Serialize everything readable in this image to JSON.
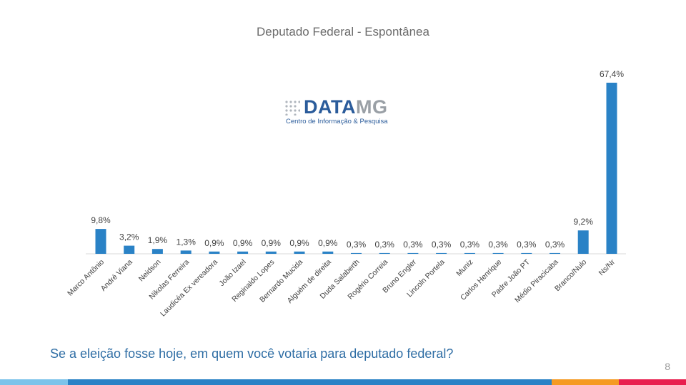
{
  "slide": {
    "question": "Se a eleição fosse hoje, em quem você votaria para deputado federal?",
    "page_number": "8"
  },
  "logo": {
    "brand_a": "DATA",
    "brand_b": "MG",
    "tagline": "Centro de Informação & Pesquisa"
  },
  "colors": {
    "bar": "#2a82c6",
    "title": "#6b6b6b",
    "question": "#2e6da4",
    "footer_segments": [
      "#7cc3ea",
      "#2a82c6",
      "#f59a23",
      "#e8204f"
    ]
  },
  "chart_data": {
    "type": "bar",
    "title": "Deputado Federal - Espontânea",
    "xlabel": "",
    "ylabel": "",
    "ylim": [
      0,
      70
    ],
    "grid": false,
    "categories": [
      "Marco Antônio",
      "André Viana",
      "Neidson",
      "Nikolas Ferreira",
      "Laudicéa Ex vereadora",
      "João Izael",
      "Reginaldo Lopes",
      "Bernardo Mucida",
      "Alguém de direita",
      "Duda Salaberth",
      "Rogério Correia",
      "Bruno Engler",
      "Lincoln Portela",
      "Muniz",
      "Carlos Henrique",
      "Padre João PT",
      "Médio Piracicaba",
      "Branco/Nulo",
      "Ns/Nr"
    ],
    "values": [
      9.8,
      3.2,
      1.9,
      1.3,
      0.9,
      0.9,
      0.9,
      0.9,
      0.9,
      0.3,
      0.3,
      0.3,
      0.3,
      0.3,
      0.3,
      0.3,
      0.3,
      9.2,
      67.4
    ],
    "value_labels": [
      "9,8%",
      "3,2%",
      "1,9%",
      "1,3%",
      "0,9%",
      "0,9%",
      "0,9%",
      "0,9%",
      "0,9%",
      "0,3%",
      "0,3%",
      "0,3%",
      "0,3%",
      "0,3%",
      "0,3%",
      "0,3%",
      "0,3%",
      "9,2%",
      "67,4%"
    ]
  }
}
